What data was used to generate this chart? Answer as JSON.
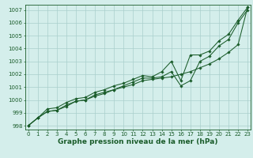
{
  "xlabel": "Graphe pression niveau de la mer (hPa)",
  "ylabel": "",
  "background_color": "#d4eeeb",
  "grid_color": "#aacfcc",
  "line_color": "#1a5c2a",
  "x_values": [
    0,
    1,
    2,
    3,
    4,
    5,
    6,
    7,
    8,
    9,
    10,
    11,
    12,
    13,
    14,
    15,
    16,
    17,
    18,
    19,
    20,
    21,
    22,
    23
  ],
  "line1": [
    998.0,
    998.6,
    999.1,
    999.2,
    999.5,
    999.9,
    1000.0,
    1000.3,
    1000.5,
    1000.8,
    1001.0,
    1001.2,
    1001.5,
    1001.6,
    1001.7,
    1001.8,
    1002.0,
    1002.2,
    1002.5,
    1002.8,
    1003.2,
    1003.7,
    1004.3,
    1007.2
  ],
  "line2": [
    998.0,
    998.6,
    999.1,
    999.2,
    999.6,
    999.9,
    1000.0,
    1000.4,
    1000.6,
    1000.8,
    1001.1,
    1001.4,
    1001.7,
    1001.7,
    1001.8,
    1002.2,
    1001.1,
    1001.5,
    1003.0,
    1003.4,
    1004.2,
    1004.7,
    1006.0,
    1007.0
  ],
  "line3": [
    998.0,
    998.6,
    999.3,
    999.4,
    999.8,
    1000.1,
    1000.2,
    1000.6,
    1000.8,
    1001.1,
    1001.3,
    1001.6,
    1001.9,
    1001.8,
    1002.2,
    1003.0,
    1001.5,
    1003.5,
    1003.5,
    1003.8,
    1004.6,
    1005.1,
    1006.2,
    1007.2
  ],
  "ylim": [
    997.7,
    1007.4
  ],
  "yticks": [
    998,
    999,
    1000,
    1001,
    1002,
    1003,
    1004,
    1005,
    1006,
    1007
  ],
  "xticks": [
    0,
    1,
    2,
    3,
    4,
    5,
    6,
    7,
    8,
    9,
    10,
    11,
    12,
    13,
    14,
    15,
    16,
    17,
    18,
    19,
    20,
    21,
    22,
    23
  ],
  "tick_fontsize": 5.0,
  "xlabel_fontsize": 6.5,
  "marker": "D",
  "marker_size": 1.8,
  "line_width": 0.75
}
